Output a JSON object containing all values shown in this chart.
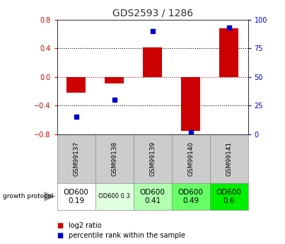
{
  "title": "GDS2593 / 1286",
  "samples": [
    "GSM99137",
    "GSM99138",
    "GSM99139",
    "GSM99140",
    "GSM99141"
  ],
  "log2_ratio": [
    -0.22,
    -0.09,
    0.41,
    -0.75,
    0.68
  ],
  "percentile_rank": [
    15,
    30,
    90,
    2,
    93
  ],
  "ylim_left": [
    -0.8,
    0.8
  ],
  "ylim_right": [
    0,
    100
  ],
  "bar_color": "#cc0000",
  "dot_color": "#0000cc",
  "grid_lines_dotted": [
    -0.4,
    0.4
  ],
  "zero_line_color": "#cc0000",
  "dotted_color": "#000000",
  "title_color": "#333333",
  "left_tick_color": "#cc0000",
  "right_tick_color": "#0000cc",
  "protocol_labels": [
    "OD600\n0.19",
    "OD600 0.3",
    "OD600\n0.41",
    "OD600\n0.49",
    "OD600\n0.6"
  ],
  "protocol_bg": [
    "#ffffff",
    "#e0ffe0",
    "#b0ffb0",
    "#66ff66",
    "#00ee00"
  ],
  "protocol_small": [
    false,
    true,
    false,
    false,
    false
  ],
  "legend_items": [
    "log2 ratio",
    "percentile rank within the sample"
  ],
  "sample_bg": "#cccccc"
}
